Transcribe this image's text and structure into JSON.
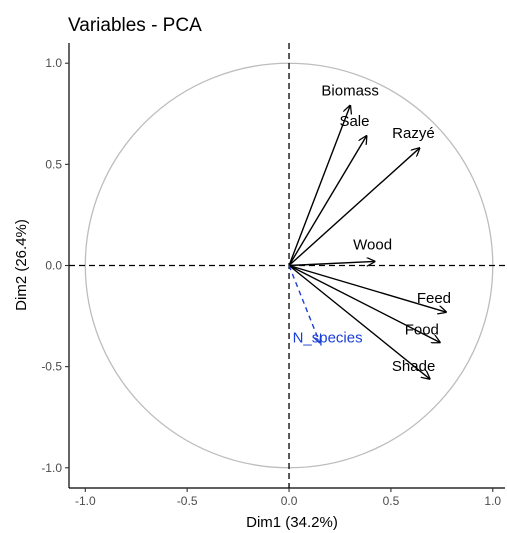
{
  "chart_data": {
    "type": "scatter",
    "title": "Variables - PCA",
    "xlabel": "Dim1 (34.2%)",
    "ylabel": "Dim2 (26.4%)",
    "xlim": [
      -1.08,
      1.06
    ],
    "ylim": [
      -1.1,
      1.1
    ],
    "x_ticks": [
      -1.0,
      -0.5,
      0.0,
      0.5,
      1.0
    ],
    "x_tick_labels": [
      "-1.0",
      "-0.5",
      "0.0",
      "0.5",
      "1.0"
    ],
    "y_ticks": [
      -1.0,
      -0.5,
      0.0,
      0.5,
      1.0
    ],
    "y_tick_labels": [
      "-1.0",
      "-0.5",
      "0.0",
      "0.5",
      "1.0"
    ],
    "grid": false,
    "unit_circle": true,
    "reference_lines": {
      "x": 0,
      "y": 0,
      "style": "dashed"
    },
    "colors": {
      "active": "#000000",
      "supplementary": "#1a3fd6",
      "circle": "#bdbdbd"
    },
    "variables": [
      {
        "name": "Biomass",
        "x": 0.3,
        "y": 0.79,
        "type": "active"
      },
      {
        "name": "Sale",
        "x": 0.38,
        "y": 0.64,
        "type": "active"
      },
      {
        "name": "Razyé",
        "x": 0.64,
        "y": 0.58,
        "type": "active"
      },
      {
        "name": "Wood",
        "x": 0.42,
        "y": 0.02,
        "type": "active"
      },
      {
        "name": "Feed",
        "x": 0.77,
        "y": -0.23,
        "type": "active"
      },
      {
        "name": "Food",
        "x": 0.74,
        "y": -0.38,
        "type": "active"
      },
      {
        "name": "Shade",
        "x": 0.69,
        "y": -0.56,
        "type": "active"
      },
      {
        "name": "N_species",
        "x": 0.15,
        "y": -0.38,
        "type": "supplementary"
      }
    ]
  }
}
